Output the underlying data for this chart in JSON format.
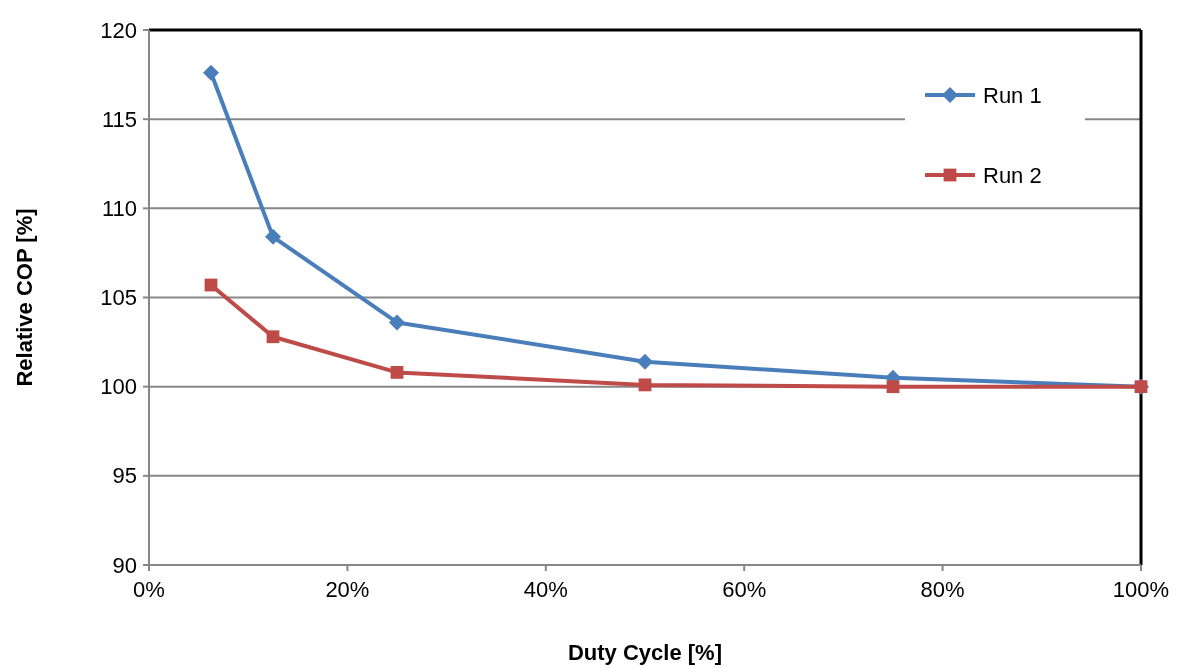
{
  "chart_data": {
    "type": "line",
    "xlabel": "Duty Cycle [%]",
    "ylabel": "Relative COP [%]",
    "x": [
      6.25,
      12.5,
      25,
      50,
      75,
      100
    ],
    "series": [
      {
        "name": "Run 1",
        "color": "#4a7ebb",
        "values": [
          117.6,
          108.4,
          103.6,
          101.4,
          100.5,
          100
        ],
        "marker": "diamond"
      },
      {
        "name": "Run 2",
        "color": "#be4b48",
        "values": [
          105.7,
          102.8,
          100.8,
          100.1,
          100,
          100
        ],
        "marker": "square"
      }
    ],
    "xlim": [
      0,
      100
    ],
    "xticks": [
      {
        "value": 0,
        "label": "0%"
      },
      {
        "value": 20,
        "label": "20%"
      },
      {
        "value": 40,
        "label": "40%"
      },
      {
        "value": 60,
        "label": "60%"
      },
      {
        "value": 80,
        "label": "80%"
      },
      {
        "value": 100,
        "label": "100%"
      }
    ],
    "ylim": [
      90,
      120
    ],
    "yticks": [
      90,
      95,
      100,
      105,
      110,
      115,
      120
    ],
    "grid": "y",
    "legend": "top right",
    "line_style": "solid"
  }
}
